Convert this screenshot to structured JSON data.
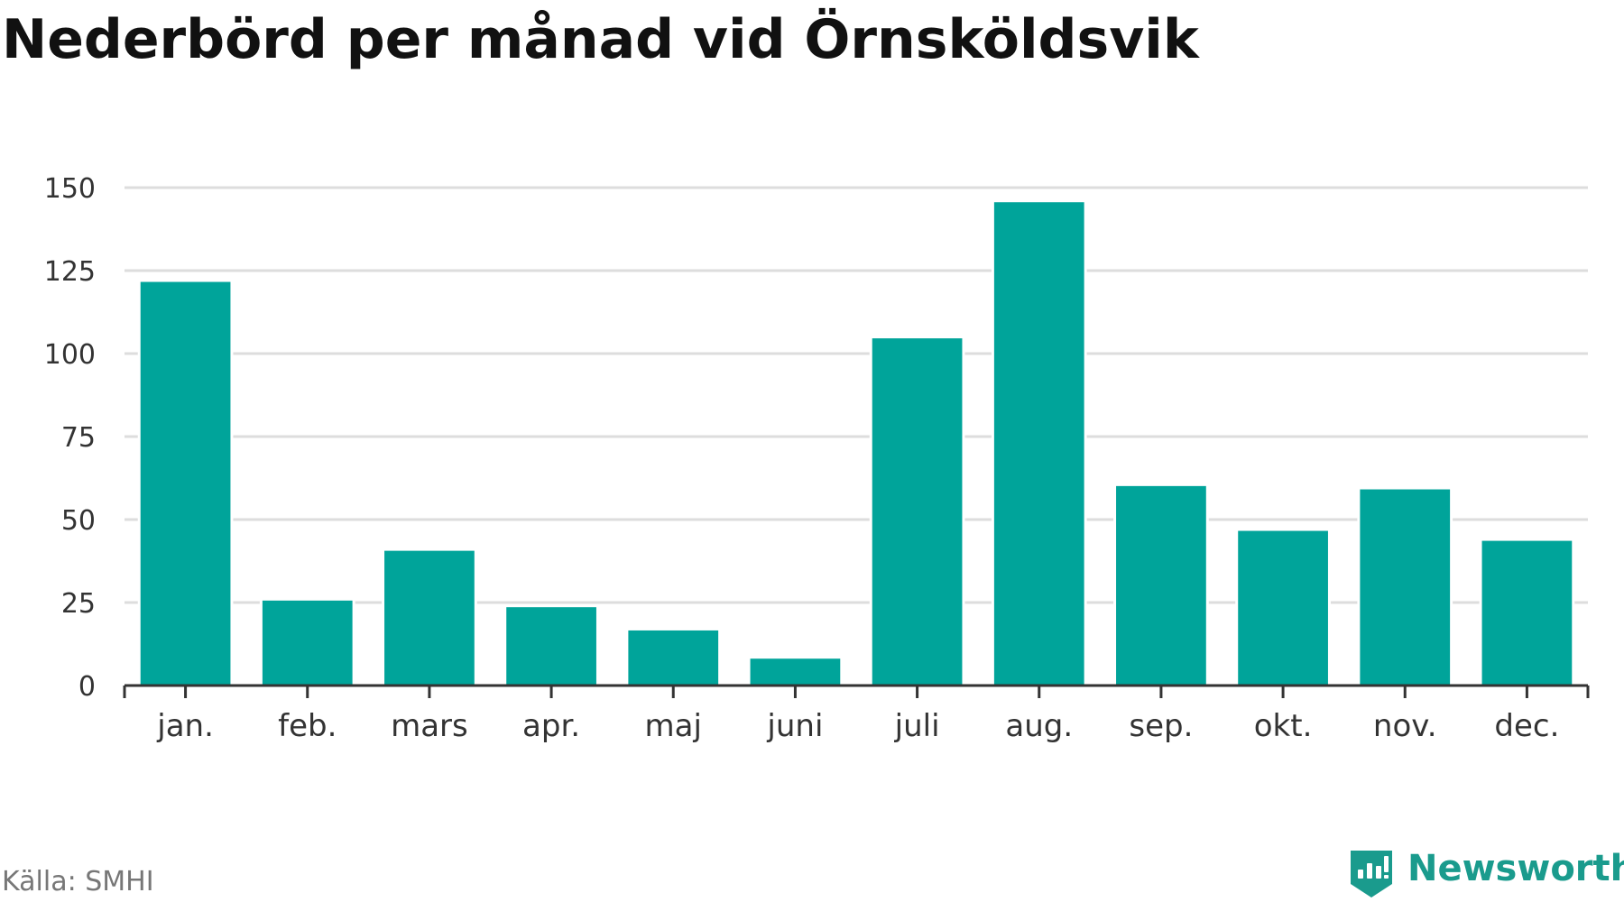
{
  "chart_data": {
    "type": "bar",
    "title": "Nederbörd per månad vid Örnsköldsvik",
    "categories": [
      "jan.",
      "feb.",
      "mars",
      "apr.",
      "maj",
      "juni",
      "juli",
      "aug.",
      "sep.",
      "okt.",
      "nov.",
      "dec."
    ],
    "values": [
      122,
      26,
      41,
      24,
      17,
      8.5,
      105,
      146,
      60.5,
      47,
      59.5,
      44
    ],
    "yticks": [
      0,
      25,
      50,
      75,
      100,
      125,
      150
    ],
    "ytick_labels": [
      "0",
      "25",
      "50",
      "75",
      "100",
      "125",
      "150"
    ],
    "ylim": [
      0,
      150
    ],
    "xlabel": "",
    "ylabel": "",
    "grid": true,
    "legend": "none",
    "bar_color": "#00a49a",
    "grid_color": "#dddddd",
    "axis_color": "#333333"
  },
  "footer": {
    "source": "Källa: SMHI",
    "brand_name": "Newsworthy",
    "brand_icon": "newsworthy-logo-icon",
    "brand_color": "#1a9b8d"
  }
}
